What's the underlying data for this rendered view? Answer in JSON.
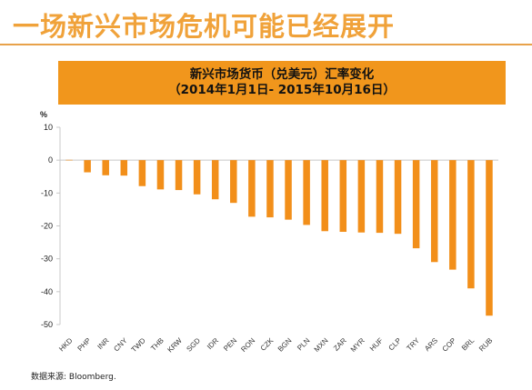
{
  "page": {
    "title": "一场新兴市场危机可能已经展开",
    "source": "数据来源: Bloomberg."
  },
  "chart_data": {
    "type": "bar",
    "title": "新兴市场货币（兑美元）汇率变化",
    "subtitle": "（2014年1月1日- 2015年10月16日）",
    "ylabel": "%",
    "xlabel": "",
    "ylim": [
      -50,
      10
    ],
    "yticks": [
      10,
      0,
      -10,
      -20,
      -30,
      -40,
      -50
    ],
    "grid": false,
    "legend": "none",
    "bar_color": "#f28f1a",
    "categories": [
      "HKD",
      "PHP",
      "INR",
      "CNY",
      "TWD",
      "THB",
      "KRW",
      "SGD",
      "IDR",
      "PEN",
      "RON",
      "CZK",
      "BGN",
      "PLN",
      "MXN",
      "ZAR",
      "MYR",
      "HUF",
      "CLP",
      "TRY",
      "ARS",
      "COP",
      "BRL",
      "RUB"
    ],
    "values": [
      0.1,
      -3.7,
      -4.6,
      -4.7,
      -7.9,
      -8.9,
      -9.1,
      -10.4,
      -11.9,
      -13.0,
      -17.2,
      -17.4,
      -18.1,
      -19.7,
      -21.6,
      -21.8,
      -22.0,
      -22.1,
      -22.4,
      -26.8,
      -31.0,
      -33.3,
      -39.0,
      -47.3
    ]
  }
}
